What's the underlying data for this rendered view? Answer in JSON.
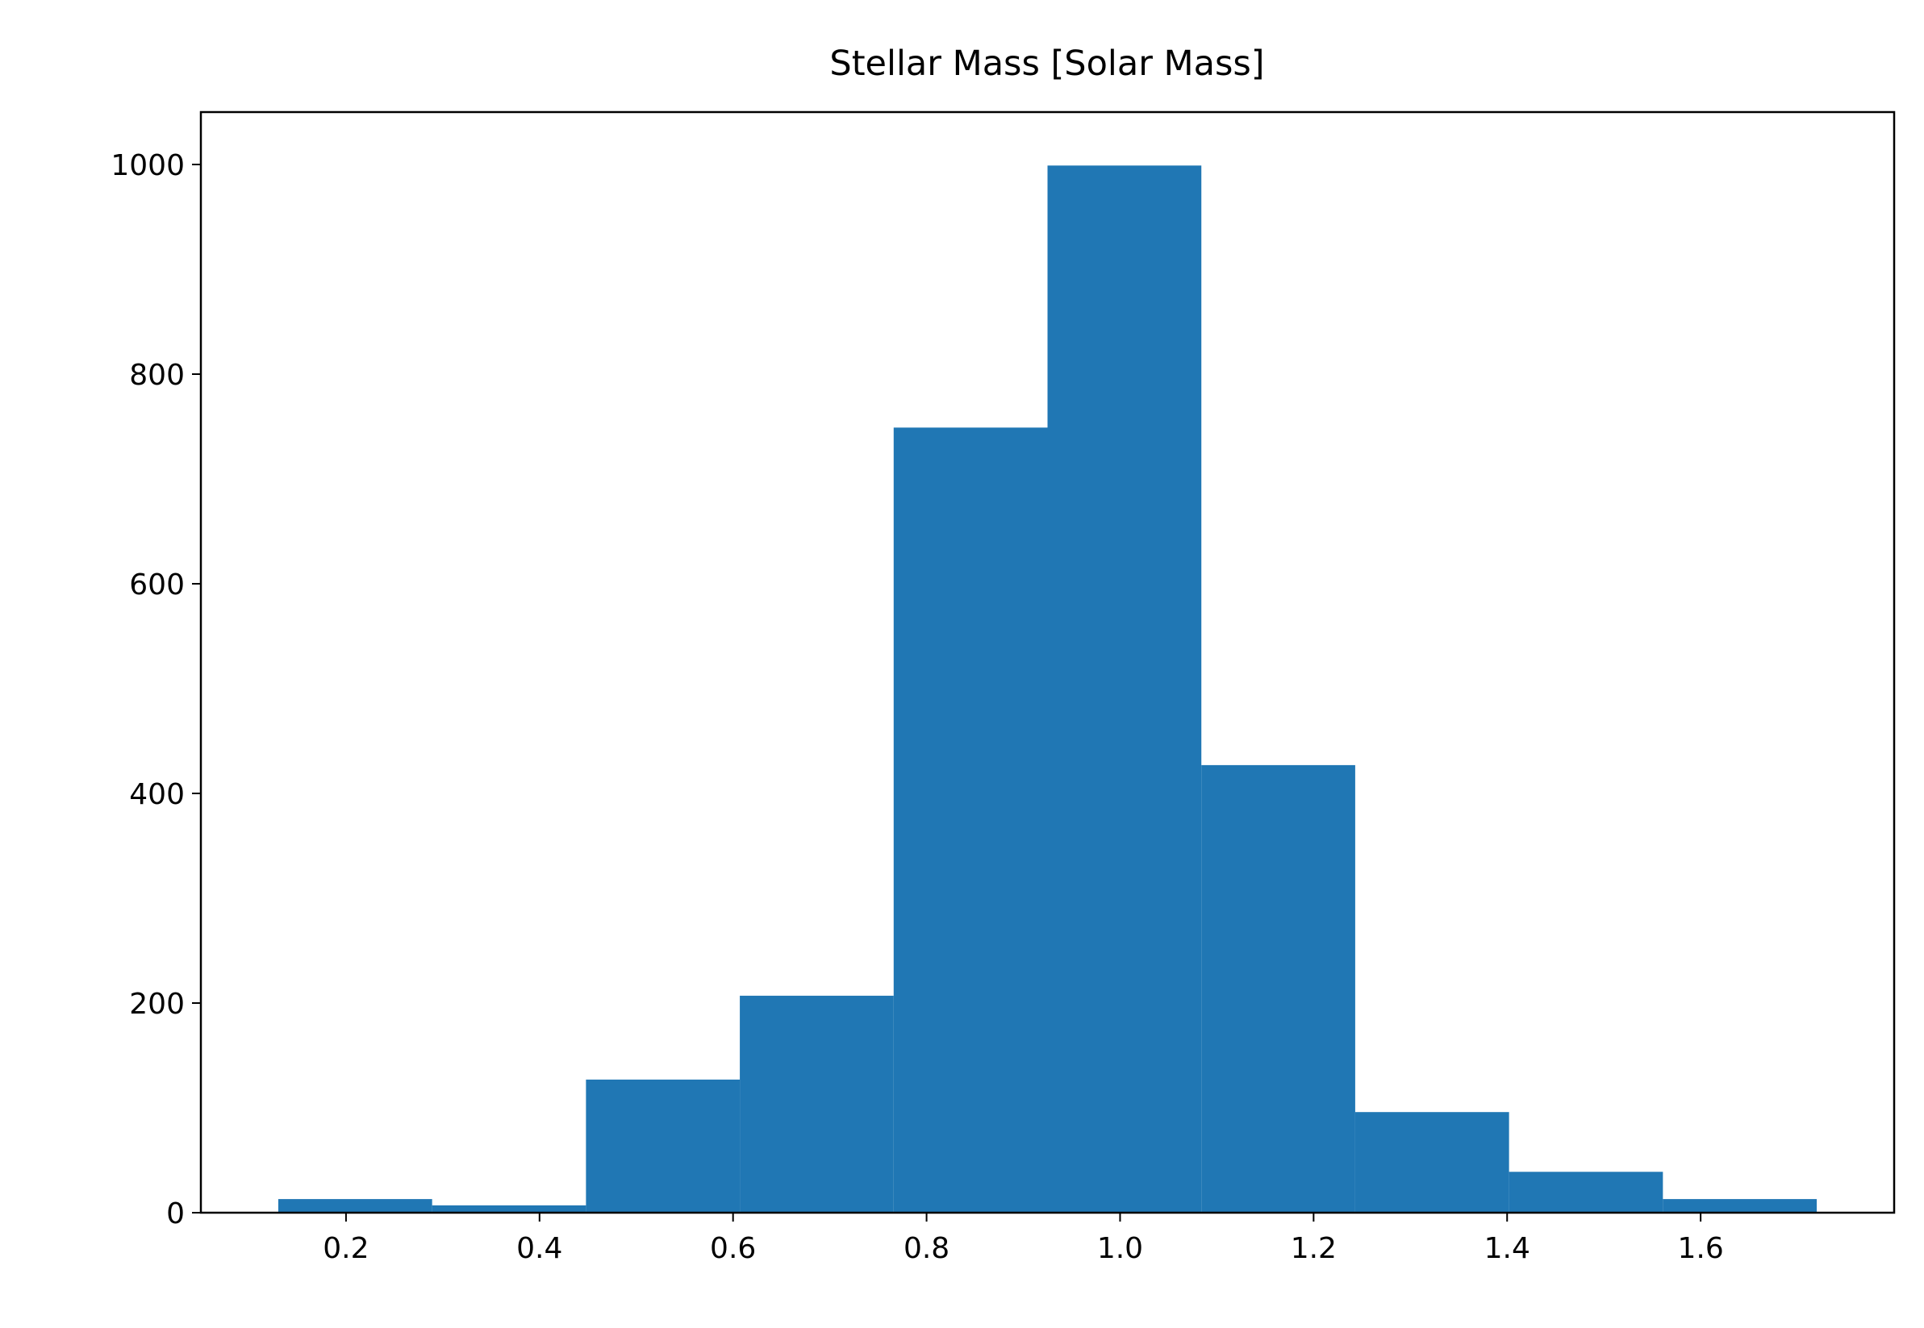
{
  "chart_data": {
    "type": "histogram",
    "title": "Stellar Mass [Solar Mass]",
    "bins": [
      0.13,
      0.289,
      0.448,
      0.607,
      0.766,
      0.925,
      1.084,
      1.243,
      1.402,
      1.561,
      1.72
    ],
    "counts": [
      13,
      7,
      127,
      207,
      749,
      999,
      427,
      96,
      39,
      13
    ],
    "color": "#2077b4",
    "xlim": [
      0.05,
      1.8
    ],
    "xticks": [
      0.2,
      0.4,
      0.6,
      0.8,
      {
        "value": 1,
        "label": "1.0"
      },
      1.2,
      1.4,
      1.6
    ],
    "ylim": [
      0,
      1050
    ],
    "yticks": [
      0,
      200,
      400,
      600,
      800,
      1000
    ]
  }
}
